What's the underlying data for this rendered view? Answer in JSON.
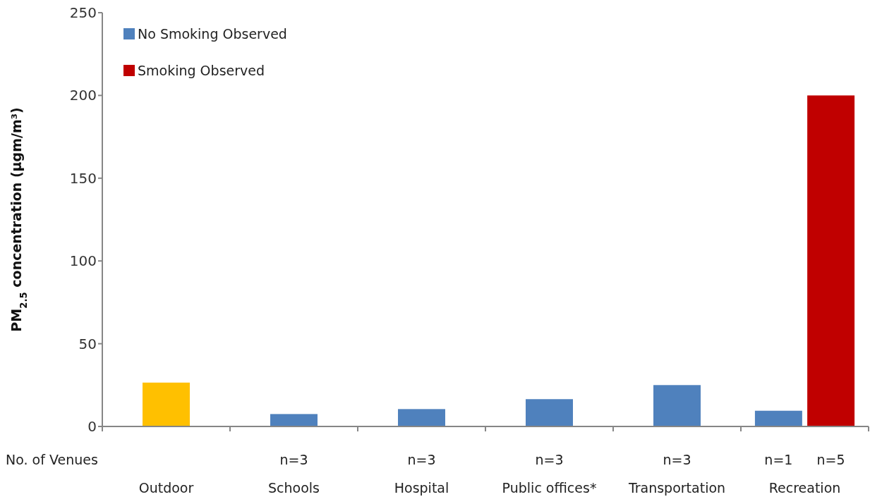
{
  "chart_data": {
    "type": "bar",
    "ylabel": "PM$_{2.5}$  concentration (µgm/m³)",
    "categories": [
      "Outdoor",
      "Schools",
      "Hospital",
      "Public offices*",
      "Transportation",
      "Recreation"
    ],
    "series": [
      {
        "color": "#ffc000",
        "values": [
          26.5,
          null,
          null,
          null,
          null,
          null
        ]
      },
      {
        "name": "No Smoking Observed",
        "color": "#4f81bd",
        "values": [
          null,
          7.5,
          10.5,
          16.5,
          25,
          9.5
        ]
      },
      {
        "name": "Smoking Observed",
        "color": "#c00000",
        "values": [
          null,
          null,
          null,
          null,
          null,
          200
        ]
      }
    ],
    "ylim": [
      0,
      250
    ],
    "yticks": [
      0,
      50,
      100,
      150,
      200,
      250
    ],
    "grid": false,
    "legend": "top left",
    "annotations": [
      "No. of Venues",
      "n=3",
      "n=3",
      "n=3",
      "n=3",
      "n=1",
      "n=5"
    ]
  }
}
